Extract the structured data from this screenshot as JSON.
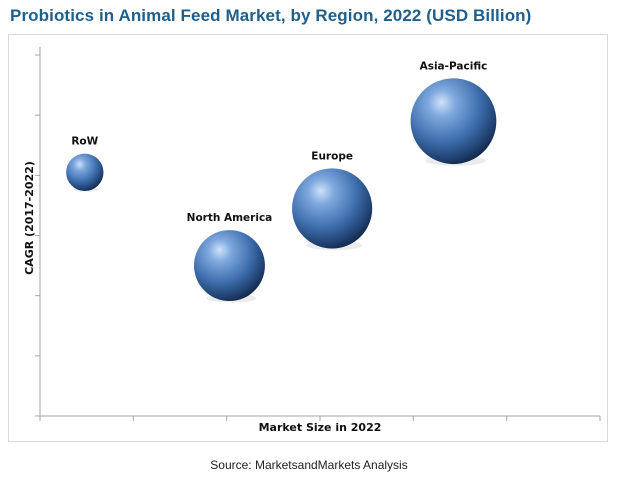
{
  "chart_data": {
    "type": "scatter",
    "subtype": "bubble",
    "title": "Probiotics in Animal Feed Market, by Region, 2022 (USD Billion)",
    "xlabel": "Market Size in 2022",
    "ylabel": "CAGR (2017-2022)",
    "xlim": [
      0,
      6
    ],
    "ylim": [
      0,
      6
    ],
    "grid": false,
    "legend": "none",
    "bubble_color": "#3f6fae",
    "points": [
      {
        "label": "RoW",
        "x": 0.48,
        "y": 4.05,
        "size": 0.18
      },
      {
        "label": "North America",
        "x": 2.03,
        "y": 2.5,
        "size": 0.65
      },
      {
        "label": "Europe",
        "x": 3.13,
        "y": 3.45,
        "size": 0.83
      },
      {
        "label": "Asia-Pacific",
        "x": 4.43,
        "y": 4.9,
        "size": 0.95
      }
    ]
  },
  "source": "Source: MarketsandMarkets Analysis"
}
